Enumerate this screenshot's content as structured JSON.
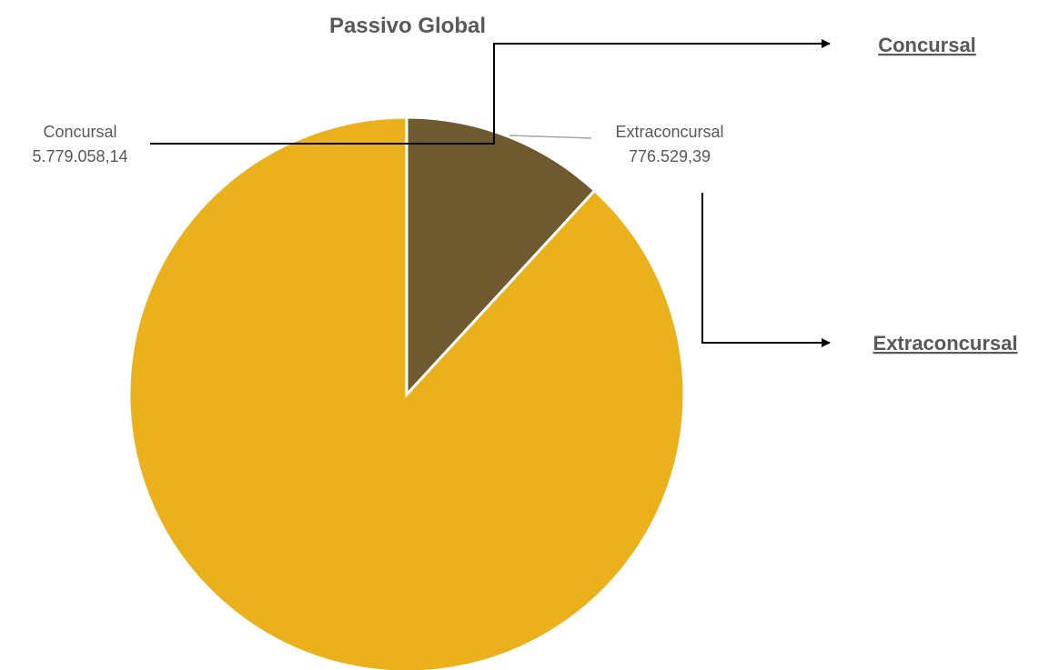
{
  "chart_data": {
    "type": "pie",
    "title": "Passivo Global",
    "slices": [
      {
        "label": "Concursal",
        "value": 5779058.14,
        "value_text": "5.779.058,14",
        "color": "#ebb11d"
      },
      {
        "label": "Extraconcursal",
        "value": 776529.39,
        "value_text": "776.529,39",
        "color": "#6e5a2e"
      }
    ],
    "start_angle_deg": 0,
    "direction": "clockwise",
    "legend": "none"
  },
  "links": {
    "concursal": "Concursal",
    "extraconcursal": "Extraconcursal"
  }
}
